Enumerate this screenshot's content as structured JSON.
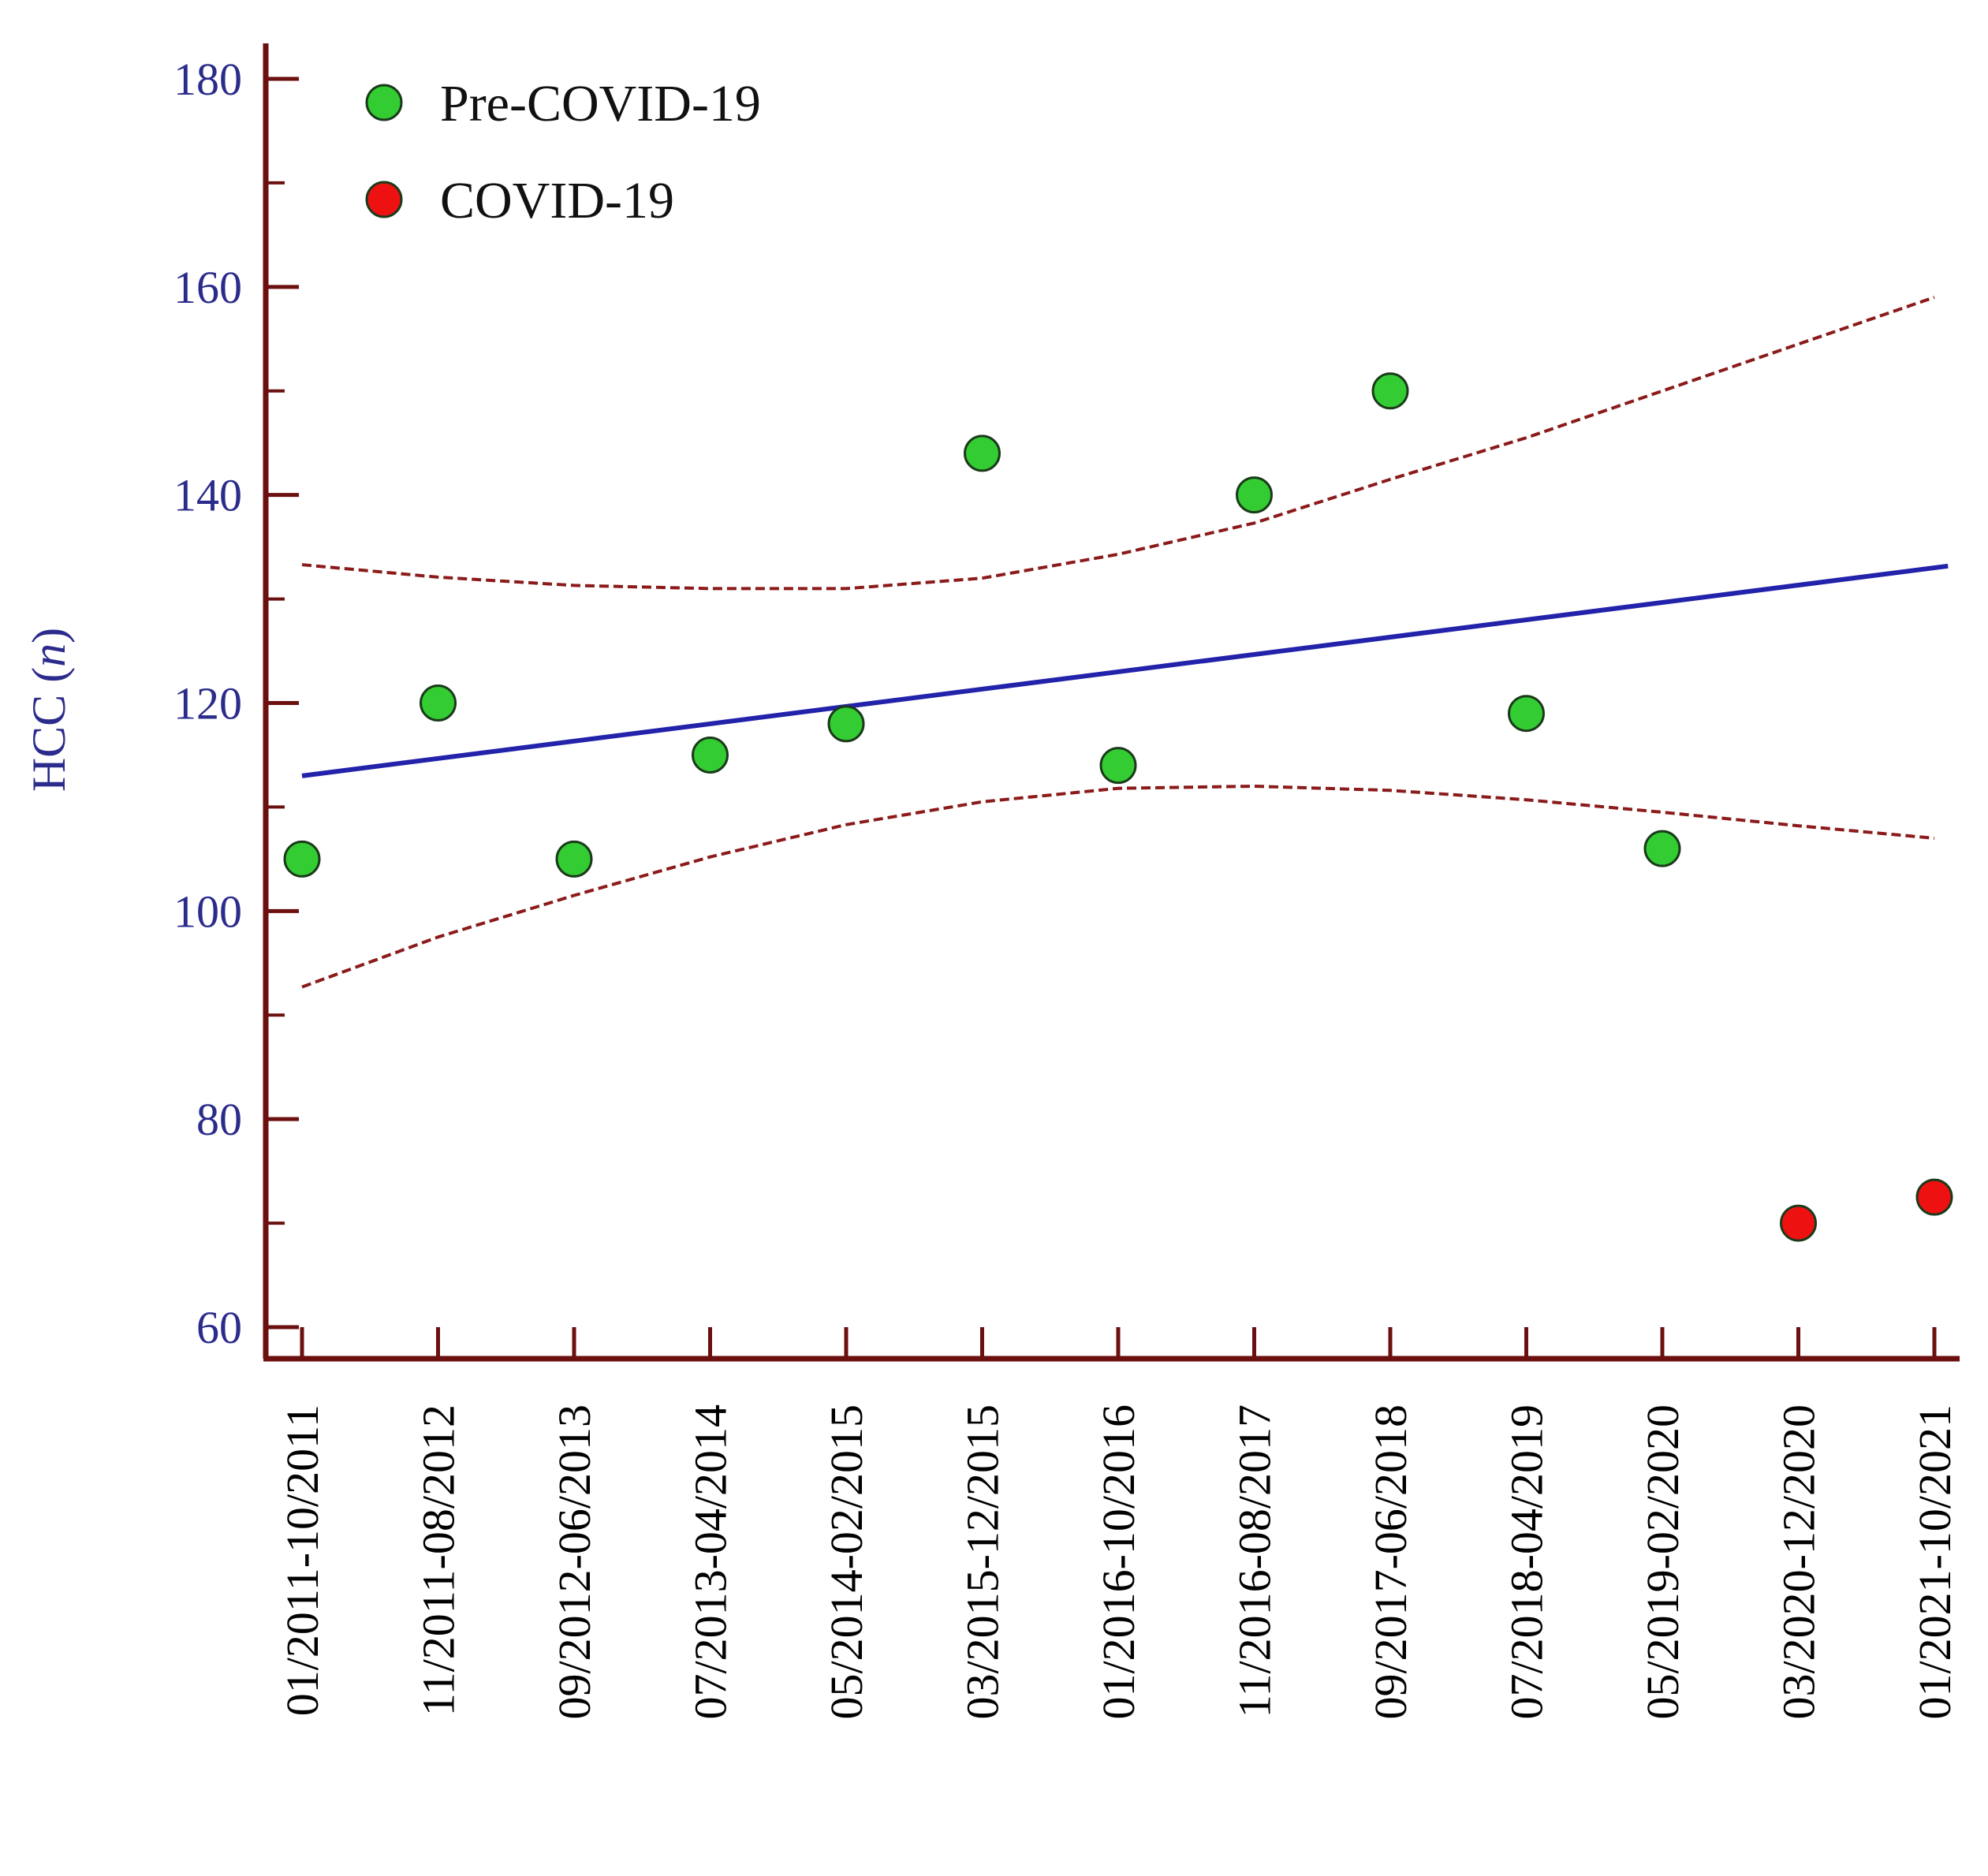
{
  "chart_data": {
    "type": "scatter",
    "title": "",
    "xlabel": "",
    "ylabel": {
      "prefix": "HCC (",
      "italic": "n",
      "suffix": ")"
    },
    "ylim": [
      60,
      180
    ],
    "yticks": [
      60,
      80,
      100,
      120,
      140,
      160,
      180
    ],
    "categories": [
      "01/2011-10/2011",
      "11/2011-08/2012",
      "09/2012-06/2013",
      "07/2013-04/2014",
      "05/2014-02/2015",
      "03/2015-12/2015",
      "01/2016-10/2016",
      "11/2016-08/2017",
      "09/2017-06/2018",
      "07/2018-04/2019",
      "05/2019-02/2020",
      "03/2020-12/2020",
      "01/2021-10/2021"
    ],
    "series": [
      {
        "name": "Pre-COVID-19",
        "color": "#33cc33",
        "x": [
          0,
          1,
          2,
          3,
          4,
          5,
          6,
          7,
          8,
          9,
          10
        ],
        "values": [
          105,
          120,
          105,
          115,
          118,
          144,
          114,
          140,
          150,
          119,
          106
        ]
      },
      {
        "name": "COVID-19",
        "color": "#ee1111",
        "x": [
          11,
          12
        ],
        "values": [
          70,
          72.5
        ]
      }
    ],
    "regression": {
      "color": "#2222aa",
      "x": [
        0,
        12
      ],
      "values": [
        113,
        133
      ]
    },
    "confidence_band": {
      "color": "#8b1a1a",
      "upper": [
        {
          "x": 0,
          "y": 133.3
        },
        {
          "x": 1,
          "y": 132.1
        },
        {
          "x": 2,
          "y": 131.3
        },
        {
          "x": 3,
          "y": 131
        },
        {
          "x": 4,
          "y": 131
        },
        {
          "x": 5,
          "y": 132
        },
        {
          "x": 6,
          "y": 134.3
        },
        {
          "x": 7,
          "y": 137.3
        },
        {
          "x": 8,
          "y": 141.5
        },
        {
          "x": 9,
          "y": 145.5
        },
        {
          "x": 10,
          "y": 150
        },
        {
          "x": 11,
          "y": 154.5
        },
        {
          "x": 12,
          "y": 159
        }
      ],
      "lower": [
        {
          "x": 0,
          "y": 92.7
        },
        {
          "x": 1,
          "y": 97.5
        },
        {
          "x": 2,
          "y": 101.5
        },
        {
          "x": 3,
          "y": 105.2
        },
        {
          "x": 4,
          "y": 108.3
        },
        {
          "x": 5,
          "y": 110.5
        },
        {
          "x": 6,
          "y": 111.8
        },
        {
          "x": 7,
          "y": 112
        },
        {
          "x": 8,
          "y": 111.6
        },
        {
          "x": 9,
          "y": 110.7
        },
        {
          "x": 10,
          "y": 109.5
        },
        {
          "x": 11,
          "y": 108.2
        },
        {
          "x": 12,
          "y": 107
        }
      ]
    },
    "legend": {
      "position": "top-left"
    },
    "grid": false
  }
}
